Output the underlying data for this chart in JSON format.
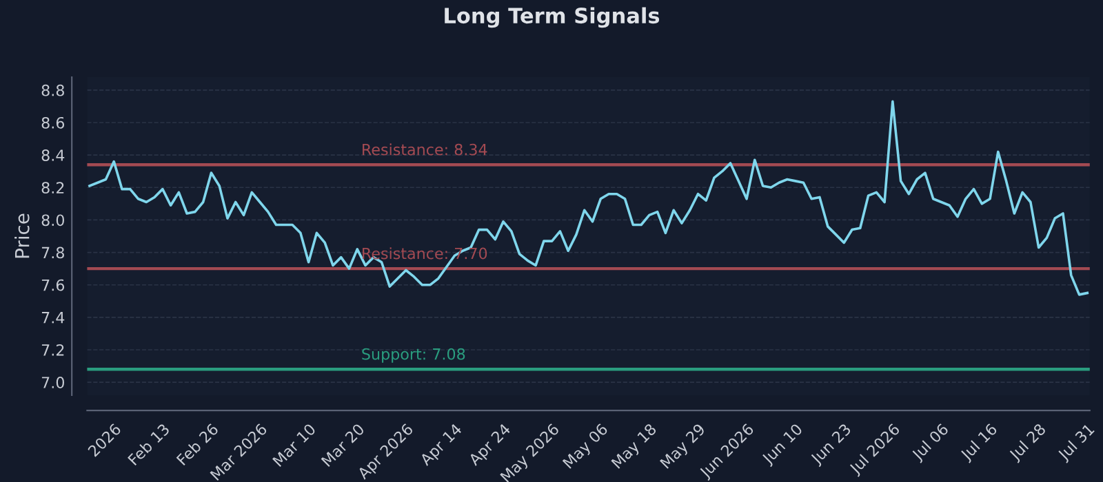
{
  "chart_data": {
    "type": "line",
    "title": "Long Term Signals",
    "ylabel": "Price",
    "categories": [
      null,
      null,
      null,
      "2026",
      null,
      null,
      null,
      null,
      null,
      "Feb 13",
      null,
      null,
      null,
      null,
      null,
      "Feb 26",
      null,
      null,
      null,
      null,
      null,
      "Mar 2026",
      null,
      null,
      null,
      null,
      null,
      "Mar 10",
      null,
      null,
      null,
      null,
      null,
      "Mar 20",
      null,
      null,
      null,
      null,
      null,
      "Apr 2026",
      null,
      null,
      null,
      null,
      null,
      "Apr 14",
      null,
      null,
      null,
      null,
      null,
      "Apr 24",
      null,
      null,
      null,
      null,
      null,
      "May 2026",
      null,
      null,
      null,
      null,
      null,
      "May 06",
      null,
      null,
      null,
      null,
      null,
      "May 18",
      null,
      null,
      null,
      null,
      null,
      "May 29",
      null,
      null,
      null,
      null,
      null,
      "Jun 2026",
      null,
      null,
      null,
      null,
      null,
      "Jun 10",
      null,
      null,
      null,
      null,
      null,
      "Jun 23",
      null,
      null,
      null,
      null,
      null,
      "Jul 2026",
      null,
      null,
      null,
      null,
      null,
      "Jul 06",
      null,
      null,
      null,
      null,
      null,
      "Jul 16",
      null,
      null,
      null,
      null,
      null,
      "Jul 28",
      null,
      null,
      null,
      null,
      null,
      "Jul 31"
    ],
    "series": [
      {
        "color": "#7fd6ec",
        "values": [
          8.21,
          8.23,
          8.25,
          8.36,
          8.19,
          8.19,
          8.13,
          8.11,
          8.14,
          8.19,
          8.09,
          8.17,
          8.04,
          8.05,
          8.11,
          8.29,
          8.21,
          8.01,
          8.11,
          8.03,
          8.17,
          8.11,
          8.05,
          7.97,
          7.97,
          7.97,
          7.92,
          7.74,
          7.92,
          7.86,
          7.72,
          7.77,
          7.7,
          7.82,
          7.72,
          7.77,
          7.74,
          7.59,
          7.64,
          7.69,
          7.65,
          7.6,
          7.6,
          7.64,
          7.71,
          7.78,
          7.81,
          7.83,
          7.94,
          7.94,
          7.88,
          7.99,
          7.93,
          7.79,
          7.75,
          7.72,
          7.87,
          7.87,
          7.93,
          7.81,
          7.91,
          8.06,
          7.99,
          8.13,
          8.16,
          8.16,
          8.13,
          7.97,
          7.97,
          8.03,
          8.05,
          7.92,
          8.06,
          7.98,
          8.06,
          8.16,
          8.12,
          8.26,
          8.3,
          8.35,
          8.24,
          8.13,
          8.37,
          8.21,
          8.2,
          8.23,
          8.25,
          8.24,
          8.23,
          8.13,
          8.14,
          7.96,
          7.91,
          7.86,
          7.94,
          7.95,
          8.15,
          8.17,
          8.11,
          8.73,
          8.24,
          8.16,
          8.25,
          8.29,
          8.13,
          8.11,
          8.09,
          8.02,
          8.13,
          8.19,
          8.1,
          8.13,
          8.42,
          8.24,
          8.04,
          8.17,
          8.11,
          7.83,
          7.89,
          8.01,
          8.04,
          7.66,
          7.54,
          7.55
        ]
      }
    ],
    "ylim": [
      6.92,
      8.88
    ],
    "yticks": [
      {
        "value": 7,
        "label": "7.0"
      },
      7.2,
      7.4,
      7.6,
      7.8,
      {
        "value": 8,
        "label": "8.0"
      },
      8.2,
      8.4,
      8.6,
      8.8
    ],
    "grid": "y",
    "marker": "none",
    "line_style": "solid",
    "ref_lines": [
      {
        "axis": "y",
        "value": 8.34,
        "label": "Resistance: 8.34",
        "color": "#a34a52"
      },
      {
        "axis": "y",
        "value": 7.7,
        "label": "Resistance: 7.70",
        "color": "#a34a52"
      },
      {
        "axis": "y",
        "value": 7.08,
        "label": "Support: 7.08",
        "color": "#2a9d7f"
      }
    ]
  }
}
